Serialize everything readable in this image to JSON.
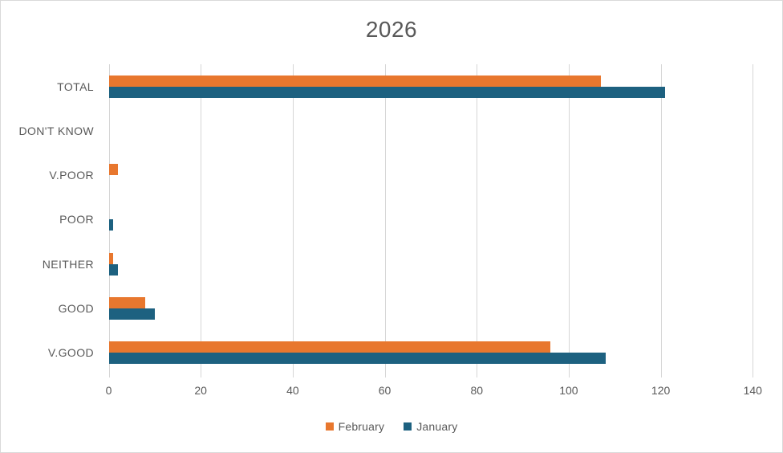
{
  "chart_data": {
    "type": "bar",
    "orientation": "horizontal",
    "title": "2026",
    "categories": [
      "TOTAL",
      "DON'T KNOW",
      "V.POOR",
      "POOR",
      "NEITHER",
      "GOOD",
      "V.GOOD"
    ],
    "series": [
      {
        "name": "February",
        "color": "#e8772e",
        "values": [
          107,
          0,
          2,
          0,
          1,
          8,
          96
        ]
      },
      {
        "name": "January",
        "color": "#1d6180",
        "values": [
          121,
          0,
          0,
          1,
          2,
          10,
          108
        ]
      }
    ],
    "xlabel": "",
    "ylabel": "",
    "xlim": [
      0,
      140
    ],
    "xticks": [
      0,
      20,
      40,
      60,
      80,
      100,
      120,
      140
    ],
    "grid": true,
    "legend_position": "bottom",
    "colors": {
      "text": "#595959",
      "gridline": "#d6d6d6",
      "border": "#d9d9d9",
      "background": "#ffffff"
    }
  }
}
